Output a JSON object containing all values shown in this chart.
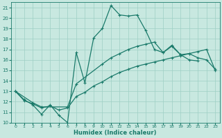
{
  "xlabel": "Humidex (Indice chaleur)",
  "background_color": "#c8e8e0",
  "grid_color": "#9ecfc4",
  "line_color": "#1a7a6a",
  "xlim": [
    -0.5,
    23.5
  ],
  "ylim": [
    10,
    21.5
  ],
  "xticks": [
    0,
    1,
    2,
    3,
    4,
    5,
    6,
    7,
    8,
    9,
    10,
    11,
    12,
    13,
    14,
    15,
    16,
    17,
    18,
    19,
    20,
    21,
    22,
    23
  ],
  "yticks": [
    10,
    11,
    12,
    13,
    14,
    15,
    16,
    17,
    18,
    19,
    20,
    21
  ],
  "line1_x": [
    0,
    1,
    2,
    3,
    4,
    5,
    6,
    7,
    8,
    9,
    10,
    11,
    12,
    13,
    14,
    15,
    16,
    17,
    18,
    19,
    20,
    21
  ],
  "line1_y": [
    13.0,
    12.2,
    11.7,
    10.8,
    11.7,
    10.7,
    10.0,
    16.7,
    13.8,
    18.1,
    19.0,
    21.2,
    20.3,
    20.2,
    20.3,
    18.8,
    17.0,
    16.7,
    17.3,
    16.5,
    16.0,
    15.9
  ],
  "line2_x": [
    0,
    2,
    3,
    6,
    7,
    10,
    11,
    12,
    13,
    14,
    15,
    16,
    17,
    18,
    19,
    20,
    21,
    22,
    23
  ],
  "line2_y": [
    13.0,
    11.9,
    11.5,
    11.5,
    13.7,
    15.6,
    16.2,
    16.6,
    17.0,
    17.3,
    17.5,
    17.7,
    16.7,
    17.4,
    16.5,
    16.6,
    16.2,
    16.0,
    15.1
  ],
  "line3_x": [
    0,
    1,
    2,
    3,
    4,
    5,
    6,
    7,
    8,
    9,
    10,
    11,
    12,
    13,
    14,
    15,
    16,
    17,
    18,
    19,
    20,
    21,
    22,
    23
  ],
  "line3_y": [
    13.0,
    12.1,
    11.8,
    11.4,
    11.6,
    11.2,
    11.4,
    12.5,
    12.9,
    13.5,
    13.9,
    14.4,
    14.8,
    15.1,
    15.4,
    15.6,
    15.8,
    16.0,
    16.2,
    16.4,
    16.6,
    16.8,
    17.0,
    15.0
  ]
}
